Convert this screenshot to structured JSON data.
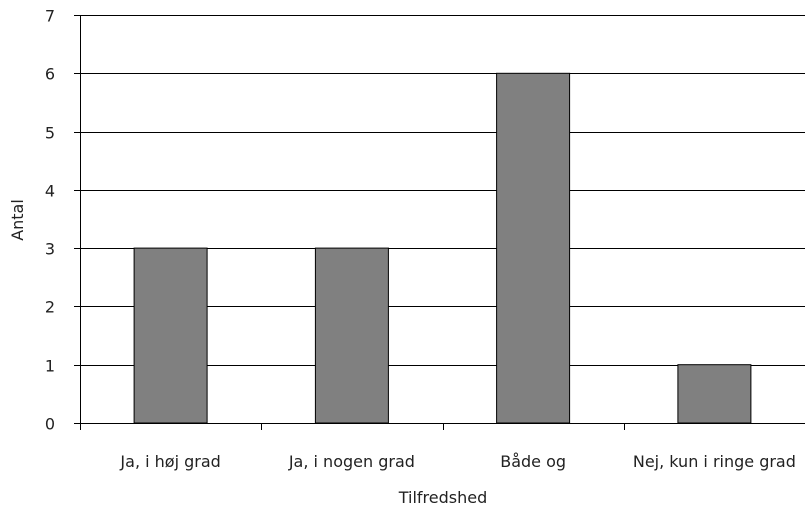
{
  "chart_data": {
    "type": "bar",
    "categories": [
      "Ja, i høj grad",
      "Ja, i nogen grad",
      "Både og",
      "Nej, kun i ringe grad"
    ],
    "values": [
      3,
      3,
      6,
      1
    ],
    "title": "",
    "xlabel": "Tilfredshed",
    "ylabel": "Antal",
    "ylim": [
      0,
      7
    ],
    "yticks": [
      0,
      1,
      2,
      3,
      4,
      5,
      6,
      7
    ],
    "grid": true,
    "legend": "none",
    "bar_color": "#808080",
    "bar_edge_color": "#000000",
    "grid_color": "#000000"
  }
}
